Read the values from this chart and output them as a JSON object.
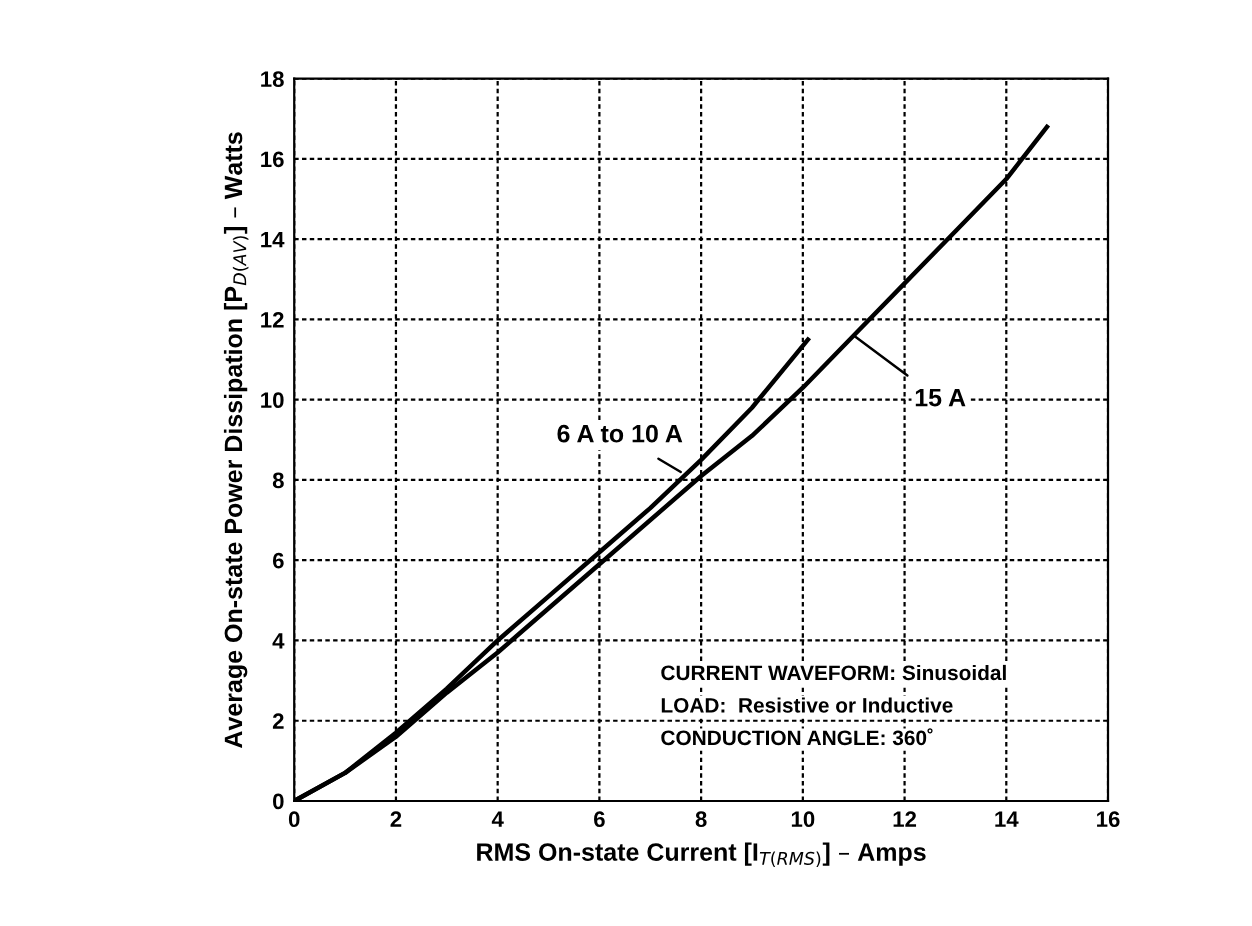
{
  "chart_data": {
    "type": "line",
    "xlabel": "RMS On-state Current [I$_{T(RMS)}$] – Amps",
    "ylabel": "Average On-state Power Dissipation [P$_{D(AV)}$] – Watts",
    "series": [
      {
        "color": "#000000",
        "x": [
          0,
          1,
          2,
          3,
          4,
          5,
          6,
          7,
          8,
          9,
          10.1
        ],
        "values": [
          0,
          0.7,
          1.7,
          2.8,
          4.0,
          5.1,
          6.2,
          7.3,
          8.5,
          9.8,
          11.5
        ]
      },
      {
        "color": "#000000",
        "x": [
          0,
          1,
          2,
          3,
          4,
          6,
          8,
          9,
          10,
          11,
          12,
          13,
          14,
          14.8
        ],
        "values": [
          0,
          0.7,
          1.6,
          2.7,
          3.7,
          5.9,
          8.1,
          9.1,
          10.3,
          11.6,
          12.9,
          14.2,
          15.5,
          16.8
        ]
      }
    ],
    "annotations": [
      {
        "text": "6 A to 10 A",
        "x": 7.6,
        "y": 8.2
      },
      {
        "text": "15 A",
        "x": 11,
        "y": 11.6
      },
      "CURRENT WAVEFORM: Sinusoidal",
      "LOAD:  Resistive or Inductive",
      "CONDUCTION ANGLE: 360˚"
    ],
    "xlim": [
      0,
      16
    ],
    "xticks": [
      0,
      2,
      4,
      6,
      8,
      10,
      12,
      14,
      16
    ],
    "ylim": [
      0,
      18
    ],
    "yticks": [
      0,
      2,
      4,
      6,
      8,
      10,
      12,
      14,
      16,
      18
    ],
    "grid": true,
    "marker": "none",
    "line_style": "solid",
    "legend": false
  }
}
